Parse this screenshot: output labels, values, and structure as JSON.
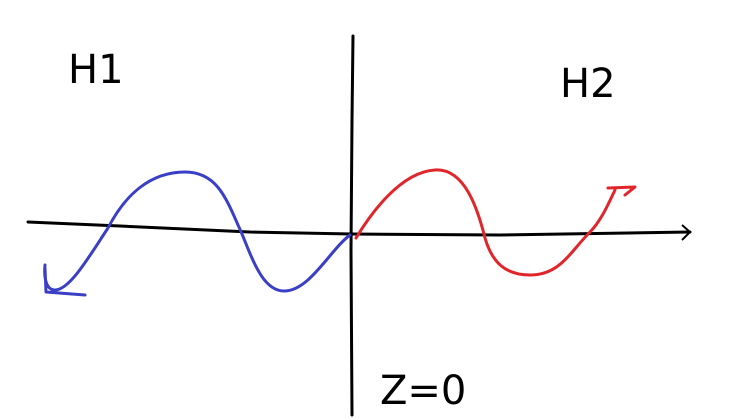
{
  "labels": {
    "left_region": "H1",
    "right_region": "H2",
    "interface": "Z=0"
  }
}
